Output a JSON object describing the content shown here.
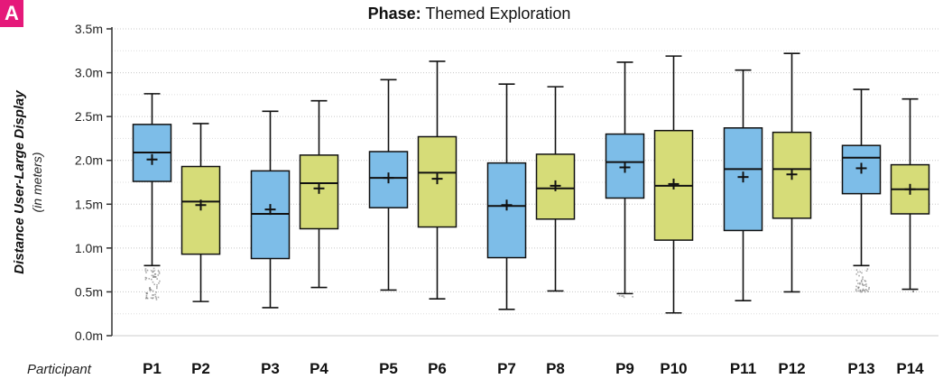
{
  "panel": {
    "label": "A"
  },
  "chart_data": {
    "type": "box",
    "title_prefix": "Phase:",
    "title": "Themed Exploration",
    "ylabel": "Distance User-Large Display",
    "ylabel_unit": "(in meters)",
    "xlabel": "Participant",
    "ylim": [
      0,
      3.5
    ],
    "yticks": [
      {
        "v": 0,
        "label": "0.0m"
      },
      {
        "v": 0.5,
        "label": "0.5m"
      },
      {
        "v": 1.0,
        "label": "1.0m"
      },
      {
        "v": 1.5,
        "label": "1.5m"
      },
      {
        "v": 2.0,
        "label": "2.0m"
      },
      {
        "v": 2.5,
        "label": "2.5m"
      },
      {
        "v": 3.0,
        "label": "3.0m"
      },
      {
        "v": 3.5,
        "label": "3.5m"
      }
    ],
    "grid": true,
    "colors": {
      "blue": "#7dbde8",
      "green": "#d6dc78"
    },
    "participants": [
      {
        "name": "P1",
        "color": "blue",
        "min": 0.8,
        "q1": 1.76,
        "median": 2.09,
        "q3": 2.41,
        "max": 2.76,
        "mean": 2.01,
        "outliers": [
          0.4,
          0.78
        ]
      },
      {
        "name": "P2",
        "color": "green",
        "min": 0.39,
        "q1": 0.93,
        "median": 1.53,
        "q3": 1.93,
        "max": 2.42,
        "mean": 1.49,
        "outliers": []
      },
      {
        "name": "P3",
        "color": "blue",
        "min": 0.32,
        "q1": 0.88,
        "median": 1.39,
        "q3": 1.88,
        "max": 2.56,
        "mean": 1.44,
        "outliers": []
      },
      {
        "name": "P4",
        "color": "green",
        "min": 0.55,
        "q1": 1.22,
        "median": 1.74,
        "q3": 2.06,
        "max": 2.68,
        "mean": 1.68,
        "outliers": []
      },
      {
        "name": "P5",
        "color": "blue",
        "min": 0.52,
        "q1": 1.46,
        "median": 1.8,
        "q3": 2.1,
        "max": 2.92,
        "mean": 1.8,
        "outliers": []
      },
      {
        "name": "P6",
        "color": "green",
        "min": 0.42,
        "q1": 1.24,
        "median": 1.86,
        "q3": 2.27,
        "max": 3.13,
        "mean": 1.79,
        "outliers": []
      },
      {
        "name": "P7",
        "color": "blue",
        "min": 0.3,
        "q1": 0.89,
        "median": 1.48,
        "q3": 1.97,
        "max": 2.87,
        "mean": 1.49,
        "outliers": []
      },
      {
        "name": "P8",
        "color": "green",
        "min": 0.51,
        "q1": 1.33,
        "median": 1.68,
        "q3": 2.07,
        "max": 2.84,
        "mean": 1.71,
        "outliers": []
      },
      {
        "name": "P9",
        "color": "blue",
        "min": 0.48,
        "q1": 1.57,
        "median": 1.98,
        "q3": 2.3,
        "max": 3.12,
        "mean": 1.92,
        "outliers": [
          0.44,
          0.47
        ]
      },
      {
        "name": "P10",
        "color": "green",
        "min": 0.26,
        "q1": 1.09,
        "median": 1.71,
        "q3": 2.34,
        "max": 3.19,
        "mean": 1.73,
        "outliers": []
      },
      {
        "name": "P11",
        "color": "blue",
        "min": 0.4,
        "q1": 1.2,
        "median": 1.9,
        "q3": 2.37,
        "max": 3.03,
        "mean": 1.81,
        "outliers": []
      },
      {
        "name": "P12",
        "color": "green",
        "min": 0.5,
        "q1": 1.34,
        "median": 1.9,
        "q3": 2.32,
        "max": 3.22,
        "mean": 1.84,
        "outliers": []
      },
      {
        "name": "P13",
        "color": "blue",
        "min": 0.8,
        "q1": 1.62,
        "median": 2.03,
        "q3": 2.17,
        "max": 2.81,
        "mean": 1.91,
        "outliers": [
          0.5,
          0.78
        ]
      },
      {
        "name": "P14",
        "color": "green",
        "min": 0.53,
        "q1": 1.39,
        "median": 1.67,
        "q3": 1.95,
        "max": 2.7,
        "mean": 1.67,
        "outliers": [
          0.51,
          0.53
        ]
      }
    ]
  }
}
